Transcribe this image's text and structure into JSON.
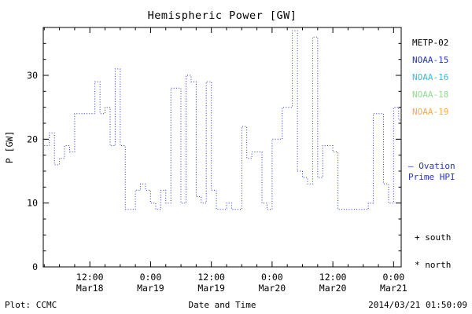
{
  "title": "Hemispheric Power [GW]",
  "axes": {
    "ylabel": "P [GW]",
    "xlabel": "Date and Time"
  },
  "legend": {
    "satellites": [
      {
        "label": "METP-02",
        "color": "#000000"
      },
      {
        "label": "NOAA-15",
        "color": "#2233cc"
      },
      {
        "label": "NOAA-16",
        "color": "#33bbee"
      },
      {
        "label": "NOAA-18",
        "color": "#8fdd8f"
      },
      {
        "label": "NOAA-19",
        "color": "#ffaa44"
      }
    ],
    "model": {
      "line1": "— Ovation",
      "line2": "Prime HPI",
      "color": "#2233cc"
    },
    "markers": [
      {
        "symbol": "+",
        "label": "south"
      },
      {
        "symbol": "*",
        "label": "north"
      }
    ]
  },
  "footer": {
    "left": "Plot: CCMC",
    "timestamp": "2014/03/21 01:50:09"
  },
  "chart_data": {
    "type": "line",
    "line_style": "dotted-step",
    "title": "Hemispheric Power [GW]",
    "xlabel": "Date and Time",
    "ylabel": "P [GW]",
    "ylim": [
      0,
      37.5
    ],
    "xlim": [
      2.8,
      73.5
    ],
    "yticks": [
      0,
      10,
      20,
      30
    ],
    "y_minor_step": 2.5,
    "x_minor_step_hours": 3,
    "x_unit": "hours since 2014-03-18 00:00",
    "xticks": [
      {
        "hour": 12,
        "time": "12:00",
        "date": "Mar18"
      },
      {
        "hour": 24,
        "time": "0:00",
        "date": "Mar19"
      },
      {
        "hour": 36,
        "time": "12:00",
        "date": "Mar19"
      },
      {
        "hour": 48,
        "time": "0:00",
        "date": "Mar20"
      },
      {
        "hour": 60,
        "time": "12:00",
        "date": "Mar20"
      },
      {
        "hour": 72,
        "time": "0:00",
        "date": "Mar21"
      }
    ],
    "series": [
      {
        "name": "Ovation Prime HPI",
        "color": "#2233cc",
        "hours": [
          3,
          4,
          5,
          6,
          7,
          8,
          9,
          10,
          11,
          12,
          13,
          14,
          15,
          16,
          17,
          18,
          19,
          20,
          21,
          22,
          23,
          24,
          25,
          26,
          27,
          28,
          29,
          30,
          31,
          32,
          33,
          34,
          35,
          36,
          37,
          38,
          39,
          40,
          41,
          42,
          43,
          44,
          45,
          46,
          47,
          48,
          49,
          50,
          51,
          52,
          53,
          54,
          55,
          56,
          57,
          58,
          59,
          60,
          61,
          62,
          63,
          64,
          65,
          66,
          67,
          68,
          69,
          70,
          71,
          72,
          73
        ],
        "values": [
          19,
          21,
          16,
          17,
          19,
          18,
          24,
          24,
          24,
          24,
          29,
          24,
          25,
          19,
          31,
          19,
          9,
          9,
          12,
          13,
          12,
          10,
          9,
          12,
          10,
          28,
          28,
          10,
          30,
          29,
          11,
          10,
          29,
          12,
          9,
          9,
          10,
          9,
          9,
          22,
          17,
          18,
          18,
          10,
          9,
          20,
          20,
          25,
          25,
          37,
          15,
          14,
          13,
          36,
          14,
          19,
          19,
          18,
          9,
          9,
          9,
          9,
          9,
          9,
          10,
          24,
          24,
          13,
          10,
          25,
          23
        ]
      }
    ],
    "legend_position": "right",
    "grid": false
  }
}
